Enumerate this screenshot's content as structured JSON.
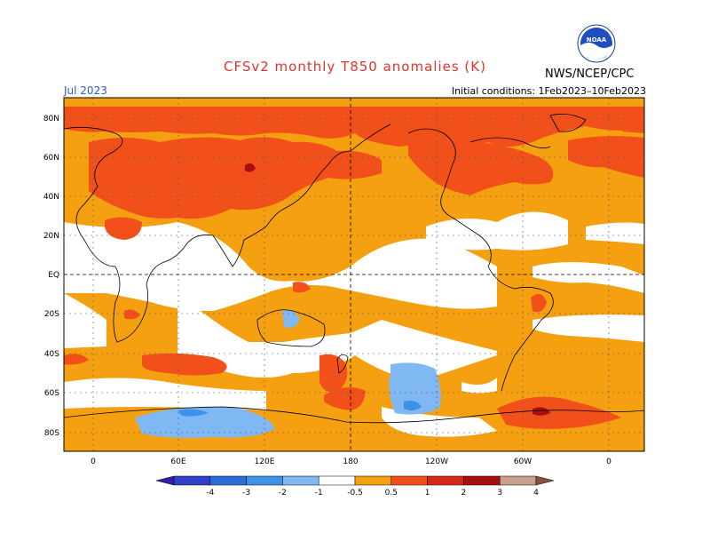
{
  "header": {
    "title": "CFSv2 monthly T850 anomalies (K)",
    "month": "Jul 2023",
    "initial_conditions": "Initial conditions: 1Feb2023–10Feb2023",
    "org": "NWS/NCEP/CPC",
    "logo_text": "NOAA"
  },
  "axes": {
    "lat_labels": [
      "80N",
      "60N",
      "40N",
      "20N",
      "EQ",
      "20S",
      "40S",
      "60S",
      "80S"
    ],
    "lon_labels": [
      "0",
      "60E",
      "120E",
      "180",
      "120W",
      "60W",
      "0"
    ]
  },
  "colorbar": {
    "labels": [
      "-4",
      "-3",
      "-2",
      "-1",
      "-0.5",
      "0.5",
      "1",
      "2",
      "3",
      "4"
    ],
    "colors": [
      "#3a1aa8",
      "#3040c8",
      "#2a6fd8",
      "#3e93e8",
      "#7fb8f2",
      "#ffffff",
      "#f5a010",
      "#f2501a",
      "#d62818",
      "#a80f10",
      "#c8a090",
      "#8a5040"
    ]
  },
  "colors": {
    "title": "#e0342c",
    "month": "#2f5cc8",
    "warm_1": "#f5a010",
    "warm_2": "#f2501a",
    "warm_3": "#d62818",
    "cool_1": "#7fb8f2",
    "cool_2": "#3e93e8"
  }
}
